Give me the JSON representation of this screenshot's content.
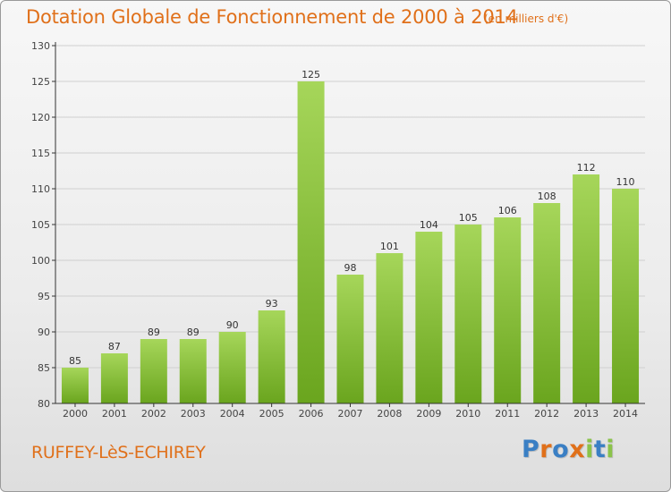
{
  "header": {
    "title": "Dotation Globale de Fonctionnement de 2000 à 2014",
    "unit": "(en milliers d'€)"
  },
  "footer": {
    "commune": "RUFFEY-LèS-ECHIREY",
    "logo_text": "Proxiti",
    "logo_colors": [
      "#3a7fc4",
      "#e0701a",
      "#3a7fc4",
      "#e0701a",
      "#8bc34a",
      "#3a7fc4",
      "#8bc34a"
    ]
  },
  "colors": {
    "bar_light": "#a6d65a",
    "bar_dark": "#6aa51e",
    "title": "#e0701a",
    "grid": "#cfcfcf",
    "axis": "#333333"
  },
  "chart_data": {
    "type": "bar",
    "title": "Dotation Globale de Fonctionnement de 2000 à 2014",
    "subtitle": "(en milliers d'€)",
    "xlabel": "",
    "ylabel": "",
    "categories": [
      "2000",
      "2001",
      "2002",
      "2003",
      "2004",
      "2005",
      "2006",
      "2007",
      "2008",
      "2009",
      "2010",
      "2011",
      "2012",
      "2013",
      "2014"
    ],
    "values": [
      85,
      87,
      89,
      89,
      90,
      93,
      125,
      98,
      101,
      104,
      105,
      106,
      108,
      112,
      110
    ],
    "ylim": [
      80,
      130
    ],
    "yticks": [
      80,
      85,
      90,
      95,
      100,
      105,
      110,
      115,
      120,
      125,
      130
    ],
    "grid": true,
    "legend": "none"
  }
}
